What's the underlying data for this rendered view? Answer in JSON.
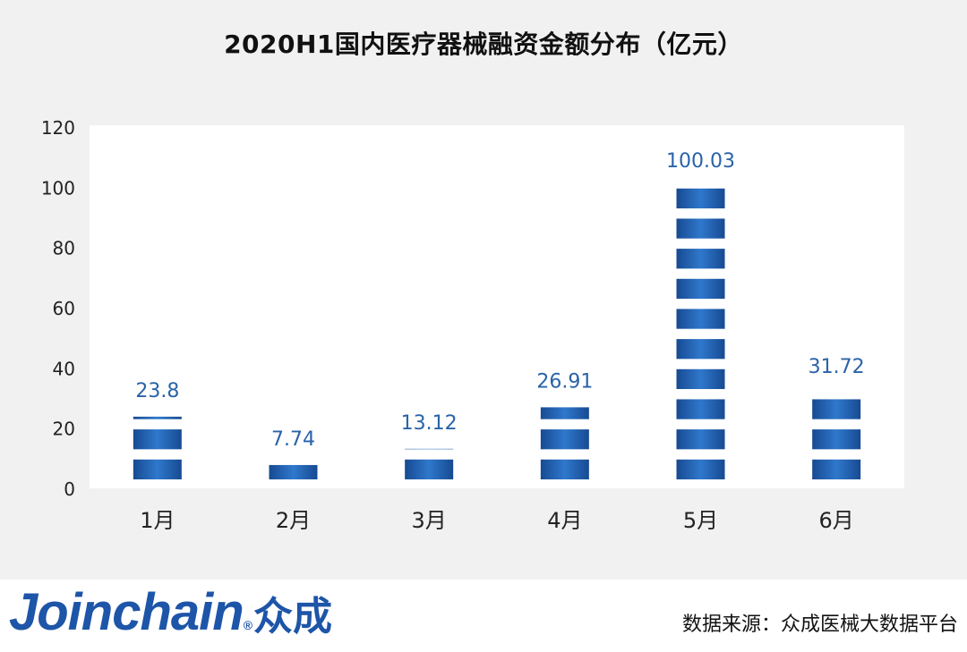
{
  "chart_data": {
    "type": "bar",
    "title": "2020H1国内医疗器械融资金额分布（亿元）",
    "categories": [
      "1月",
      "2月",
      "3月",
      "4月",
      "5月",
      "6月"
    ],
    "values": [
      23.8,
      7.74,
      13.12,
      26.91,
      100.03,
      31.72
    ],
    "data_labels": [
      "23.8",
      "7.74",
      "13.12",
      "26.91",
      "100.03",
      "31.72"
    ],
    "ylim": [
      0,
      120
    ],
    "yticks": [
      "0",
      "20",
      "40",
      "60",
      "80",
      "100",
      "120"
    ],
    "xlabel": "",
    "ylabel": "",
    "grid": false,
    "legend": "none",
    "bar_style": "striped-segments",
    "colors": {
      "bar_light": "#2f78cc",
      "bar_dark": "#174a92",
      "label": "#2a63a8",
      "panel": "#f1f1f1",
      "plot": "#ffffff"
    }
  },
  "brand": {
    "logo_text": "Joinchain",
    "logo_cn": "众成",
    "logo_mark": "®"
  },
  "source": "数据来源：众成医械大数据平台"
}
